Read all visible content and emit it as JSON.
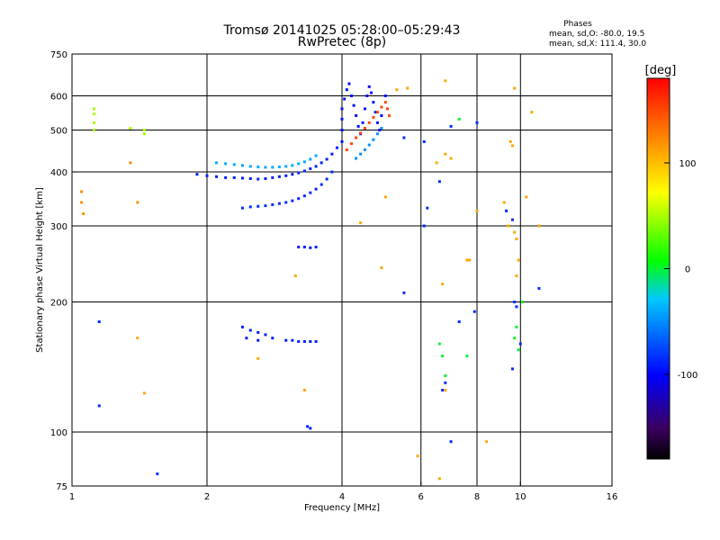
{
  "header": {
    "title": "Tromsø 20141025 05:28:00–05:29:43",
    "subtitle": "RwPretec (8p)"
  },
  "stats": {
    "heading": "Phases",
    "line1": "mean, sd,O: -80.0, 19.5",
    "line2": "mean, sd,X: 111.4, 30.0"
  },
  "colorbar": {
    "label": "[deg]",
    "range": [
      -180,
      180
    ],
    "ticks": [
      100,
      0,
      -100
    ],
    "tick_labels": [
      "100",
      "0",
      "-100"
    ]
  },
  "chart_data": {
    "type": "scatter",
    "xlabel": "Frequency [MHz]",
    "ylabel": "Stationary phase Virtual Height [km]",
    "x_scale": "log",
    "y_scale": "log",
    "xlim": [
      1,
      16
    ],
    "ylim": [
      75,
      750
    ],
    "x_ticks": [
      1,
      2,
      4,
      6,
      8,
      10,
      16
    ],
    "x_tick_labels": [
      "1",
      "2",
      "4",
      "6",
      "8",
      "10",
      "16"
    ],
    "y_ticks": [
      75,
      100,
      200,
      300,
      400,
      500,
      600,
      750
    ],
    "y_tick_labels": [
      "75",
      "100",
      "200",
      "300",
      "400",
      "500",
      "600",
      "750"
    ],
    "x_gridlines": [
      2,
      4,
      6,
      8,
      10
    ],
    "y_gridlines": [
      100,
      200,
      300,
      400,
      500,
      600
    ],
    "colorbar_colors": [
      "#000000",
      "#3c0060",
      "#0000ff",
      "#00c8ff",
      "#00ff00",
      "#ffff00",
      "#ff8000",
      "#ff0000"
    ],
    "series": [
      {
        "points": [
          [
            1.9,
            395
          ],
          [
            2.0,
            392
          ],
          [
            2.1,
            390
          ],
          [
            2.2,
            388
          ],
          [
            2.3,
            388
          ],
          [
            2.4,
            387
          ],
          [
            2.5,
            386
          ],
          [
            2.6,
            385
          ],
          [
            2.7,
            386
          ],
          [
            2.8,
            388
          ],
          [
            2.9,
            390
          ],
          [
            3.0,
            392
          ],
          [
            3.1,
            395
          ],
          [
            3.2,
            398
          ],
          [
            3.3,
            402
          ],
          [
            3.4,
            407
          ],
          [
            3.5,
            412
          ],
          [
            3.6,
            420
          ],
          [
            3.7,
            428
          ],
          [
            3.8,
            440
          ],
          [
            3.9,
            455
          ]
        ],
        "phase": -90
      },
      {
        "points": [
          [
            2.1,
            420
          ],
          [
            2.2,
            418
          ],
          [
            2.3,
            416
          ],
          [
            2.4,
            414
          ],
          [
            2.5,
            412
          ],
          [
            2.6,
            411
          ],
          [
            2.7,
            410
          ],
          [
            2.8,
            410
          ],
          [
            2.9,
            411
          ],
          [
            3.0,
            412
          ],
          [
            3.1,
            414
          ],
          [
            3.2,
            418
          ],
          [
            3.3,
            422
          ],
          [
            3.4,
            428
          ],
          [
            3.5,
            436
          ]
        ],
        "phase": -40
      },
      {
        "points": [
          [
            2.4,
            330
          ],
          [
            2.5,
            332
          ],
          [
            2.6,
            333
          ],
          [
            2.7,
            334
          ],
          [
            2.8,
            336
          ],
          [
            2.9,
            338
          ],
          [
            3.0,
            340
          ],
          [
            3.1,
            343
          ],
          [
            3.2,
            347
          ],
          [
            3.3,
            352
          ],
          [
            3.4,
            358
          ],
          [
            3.5,
            365
          ],
          [
            3.6,
            374
          ],
          [
            3.7,
            385
          ],
          [
            3.8,
            400
          ]
        ],
        "phase": -85
      },
      {
        "points": [
          [
            4.0,
            470
          ],
          [
            4.0,
            500
          ],
          [
            4.0,
            530
          ],
          [
            4.0,
            560
          ],
          [
            4.05,
            590
          ],
          [
            4.1,
            620
          ],
          [
            4.15,
            640
          ],
          [
            4.2,
            600
          ],
          [
            4.25,
            570
          ],
          [
            4.3,
            540
          ],
          [
            4.35,
            510
          ],
          [
            4.4,
            490
          ],
          [
            4.45,
            520
          ],
          [
            4.5,
            560
          ],
          [
            4.55,
            600
          ],
          [
            4.6,
            630
          ],
          [
            4.65,
            610
          ],
          [
            4.7,
            580
          ],
          [
            4.75,
            550
          ],
          [
            4.8,
            520
          ],
          [
            4.85,
            500
          ],
          [
            4.9,
            540
          ],
          [
            5.0,
            600
          ]
        ],
        "phase": -95
      },
      {
        "points": [
          [
            4.1,
            450
          ],
          [
            4.2,
            465
          ],
          [
            4.3,
            480
          ],
          [
            4.4,
            492
          ],
          [
            4.5,
            505
          ],
          [
            4.6,
            520
          ],
          [
            4.7,
            535
          ],
          [
            4.8,
            550
          ],
          [
            4.9,
            565
          ],
          [
            5.0,
            580
          ],
          [
            5.05,
            560
          ],
          [
            5.1,
            540
          ]
        ],
        "phase": 150
      },
      {
        "points": [
          [
            4.3,
            430
          ],
          [
            4.4,
            440
          ],
          [
            4.5,
            450
          ],
          [
            4.6,
            462
          ],
          [
            4.7,
            475
          ],
          [
            4.8,
            490
          ],
          [
            4.9,
            505
          ]
        ],
        "phase": -50
      },
      {
        "points": [
          [
            2.4,
            175
          ],
          [
            2.5,
            172
          ],
          [
            2.6,
            170
          ],
          [
            2.7,
            168
          ],
          [
            2.8,
            165
          ],
          [
            3.0,
            163
          ],
          [
            3.1,
            163
          ],
          [
            3.2,
            162
          ],
          [
            3.3,
            162
          ],
          [
            3.4,
            162
          ],
          [
            3.5,
            162
          ],
          [
            2.45,
            165
          ],
          [
            2.6,
            163
          ]
        ],
        "phase": -90
      },
      {
        "points": [
          [
            3.2,
            268
          ],
          [
            3.3,
            268
          ],
          [
            3.4,
            267
          ],
          [
            3.5,
            268
          ]
        ],
        "phase": -90
      },
      {
        "points": [
          [
            3.35,
            103
          ],
          [
            3.4,
            102
          ]
        ],
        "phase": -90
      },
      {
        "points": [
          [
            1.12,
            545
          ],
          [
            1.12,
            520
          ],
          [
            1.12,
            500
          ],
          [
            1.12,
            560
          ],
          [
            1.35,
            505
          ],
          [
            1.45,
            490
          ],
          [
            1.45,
            500
          ]
        ],
        "phase": 50
      },
      {
        "points": [
          [
            1.05,
            360
          ],
          [
            1.05,
            340
          ],
          [
            1.06,
            320
          ],
          [
            1.4,
            340
          ],
          [
            1.35,
            420
          ]
        ],
        "phase": 120
      },
      {
        "points": [
          [
            5.5,
            480
          ],
          [
            6.1,
            470
          ],
          [
            6.2,
            330
          ],
          [
            6.1,
            300
          ],
          [
            5.5,
            210
          ],
          [
            6.6,
            380
          ],
          [
            7.0,
            510
          ],
          [
            7.3,
            180
          ],
          [
            7.9,
            190
          ],
          [
            8.0,
            520
          ],
          [
            9.3,
            325
          ],
          [
            9.6,
            310
          ],
          [
            9.7,
            200
          ],
          [
            9.8,
            195
          ],
          [
            11.0,
            215
          ],
          [
            10.0,
            160
          ],
          [
            9.6,
            140
          ],
          [
            6.7,
            125
          ],
          [
            6.8,
            130
          ],
          [
            7.0,
            95
          ],
          [
            1.15,
            180
          ],
          [
            1.15,
            115
          ],
          [
            1.55,
            80
          ]
        ],
        "phase": -85
      },
      {
        "points": [
          [
            6.5,
            420
          ],
          [
            6.8,
            440
          ],
          [
            7.0,
            430
          ],
          [
            6.7,
            220
          ],
          [
            7.6,
            250
          ],
          [
            7.7,
            250
          ],
          [
            8.0,
            325
          ],
          [
            9.2,
            340
          ],
          [
            9.4,
            300
          ],
          [
            9.5,
            470
          ],
          [
            9.6,
            460
          ],
          [
            9.7,
            290
          ],
          [
            9.8,
            280
          ],
          [
            9.9,
            250
          ],
          [
            9.8,
            230
          ],
          [
            9.7,
            625
          ],
          [
            10.3,
            350
          ],
          [
            10.6,
            550
          ],
          [
            11.0,
            300
          ],
          [
            6.8,
            650
          ],
          [
            5.9,
            88
          ],
          [
            6.6,
            78
          ],
          [
            6.8,
            125
          ],
          [
            8.4,
            95
          ],
          [
            5.0,
            350
          ],
          [
            4.4,
            305
          ],
          [
            4.9,
            240
          ],
          [
            1.4,
            165
          ],
          [
            1.45,
            123
          ],
          [
            2.6,
            148
          ],
          [
            3.15,
            230
          ],
          [
            3.3,
            125
          ],
          [
            5.3,
            620
          ],
          [
            5.6,
            625
          ]
        ],
        "phase": 110
      },
      {
        "points": [
          [
            6.6,
            160
          ],
          [
            6.7,
            150
          ],
          [
            6.8,
            135
          ],
          [
            7.3,
            530
          ],
          [
            7.6,
            150
          ],
          [
            9.7,
            165
          ],
          [
            9.8,
            175
          ],
          [
            10.1,
            200
          ],
          [
            9.9,
            155
          ]
        ],
        "phase": 0
      }
    ]
  }
}
